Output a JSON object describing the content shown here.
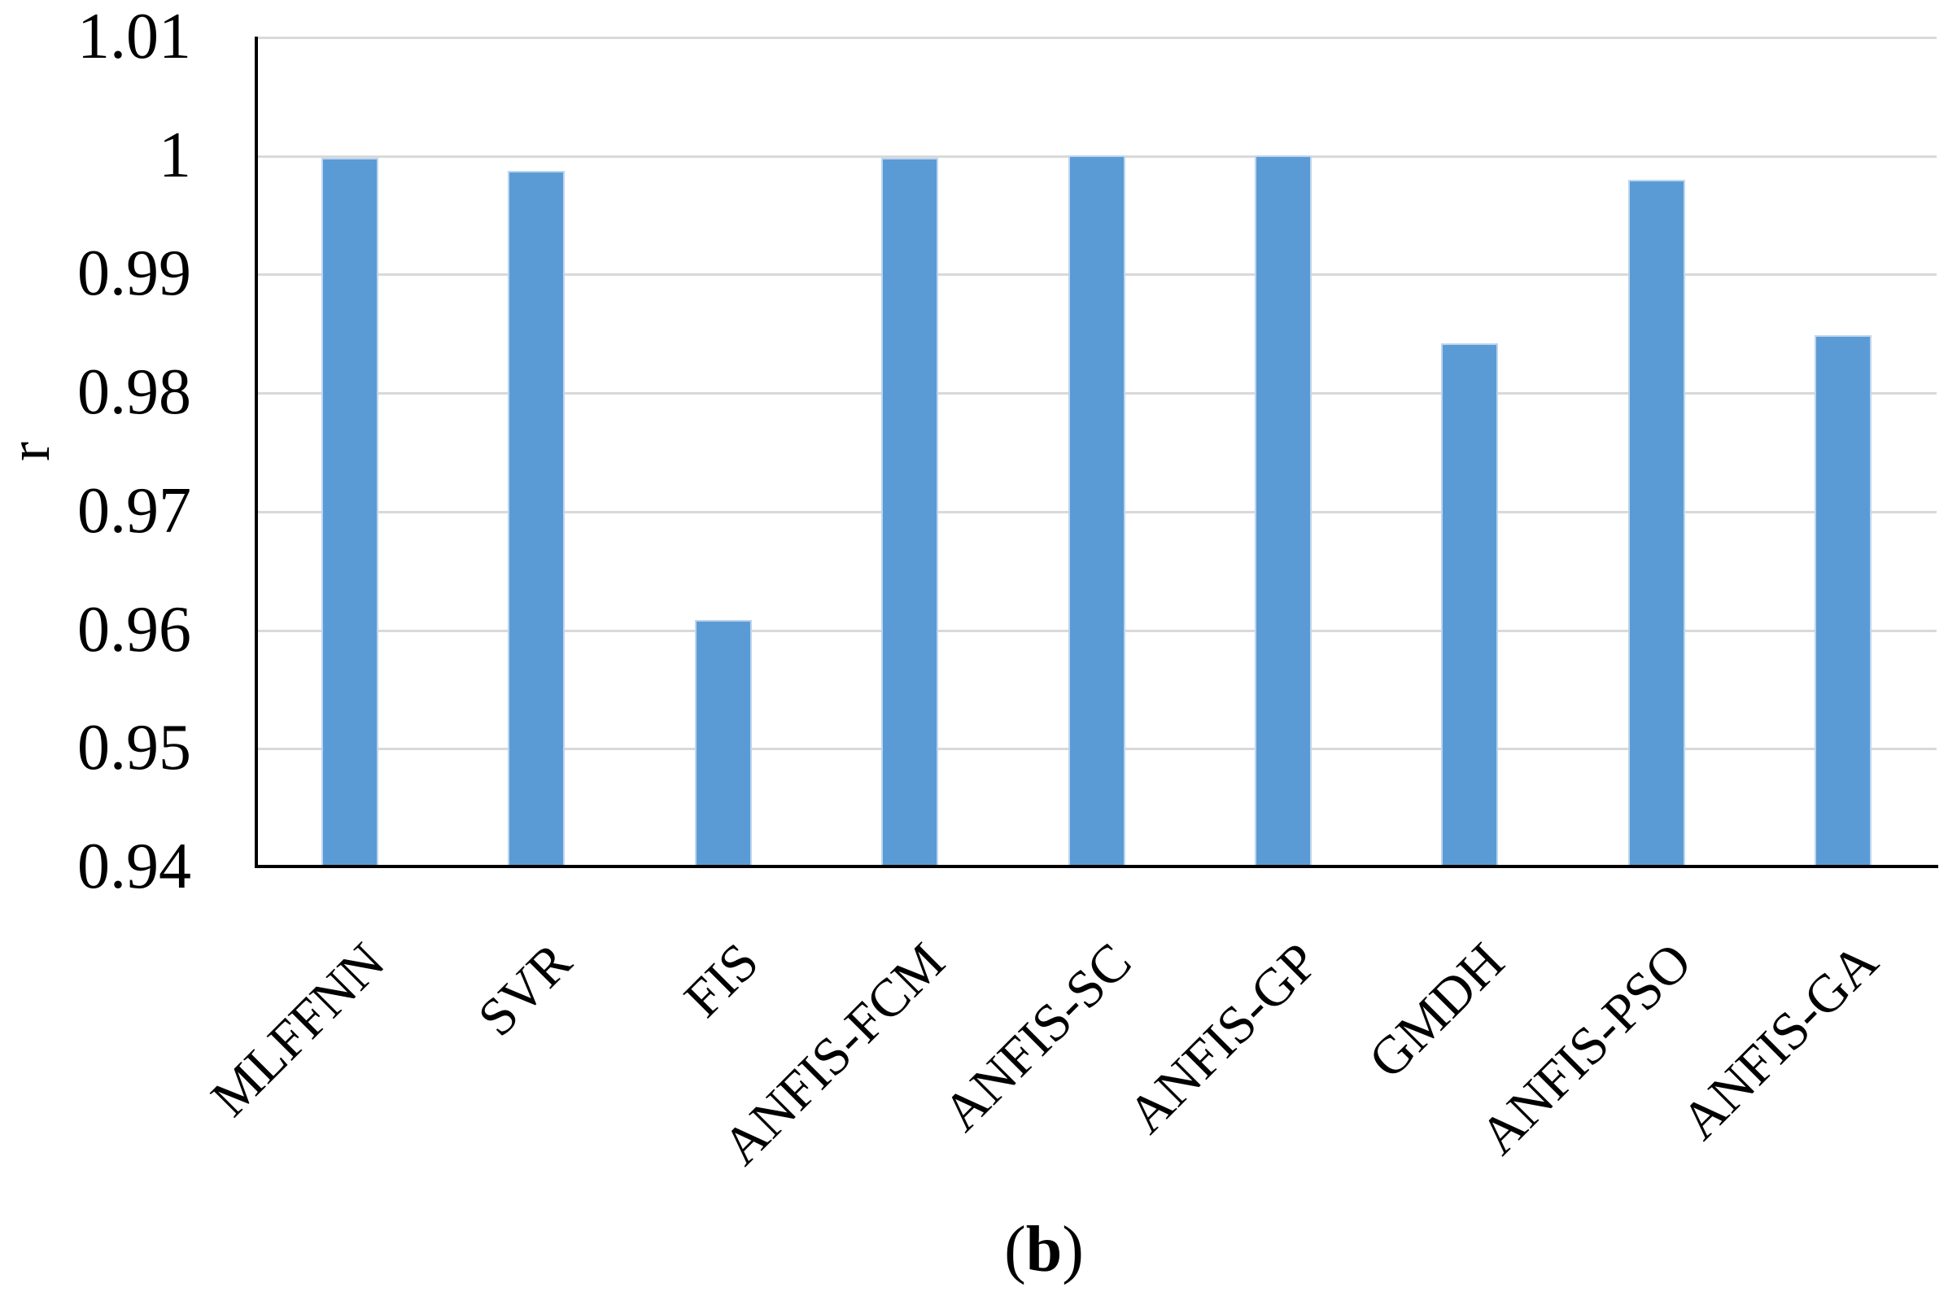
{
  "figure": {
    "caption_prefix": "(",
    "caption_letter": "b",
    "caption_suffix": ")"
  },
  "chart_data": {
    "type": "bar",
    "title": "",
    "xlabel": "",
    "ylabel": "r",
    "categories": [
      "MLFFNN",
      "SVR",
      "FIS",
      "ANFIS-FCM",
      "ANFIS-SC",
      "ANFIS-GP",
      "GMDH",
      "ANFIS-PSO",
      "ANFIS-GA"
    ],
    "values": [
      0.9998,
      0.9987,
      0.9608,
      0.9998,
      1.0,
      1.0,
      0.9841,
      0.9979,
      0.9848
    ],
    "ylim": [
      0.94,
      1.01
    ],
    "ytick_step": 0.01,
    "ytick_labels": [
      "1.01",
      "1",
      "0.99",
      "0.98",
      "0.97",
      "0.96",
      "0.95",
      "0.94"
    ],
    "grid": true,
    "legend": "none",
    "bar_color": "#5B9BD5",
    "bar_border_color": "#BDD5EE",
    "gridline_color": "#D9D9D9",
    "axis_color": "#000000"
  }
}
